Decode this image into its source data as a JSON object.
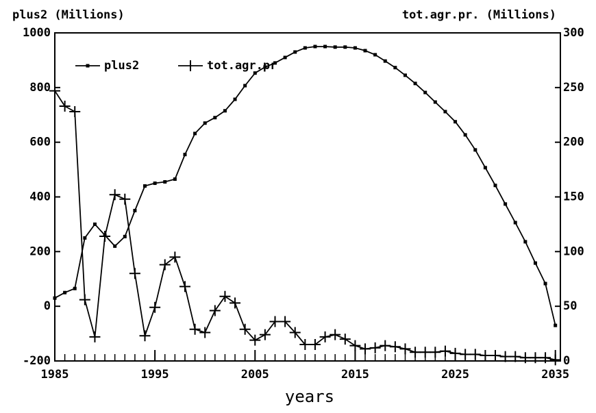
{
  "chart_data": {
    "type": "line",
    "y_label": "plus2 (Millions)",
    "y2_label": "tot.agr.pr. (Millions)",
    "x_label": "years",
    "x": [
      1985,
      1986,
      1987,
      1988,
      1989,
      1990,
      1991,
      1992,
      1993,
      1994,
      1995,
      1996,
      1997,
      1998,
      1999,
      2000,
      2001,
      2002,
      2003,
      2004,
      2005,
      2006,
      2007,
      2008,
      2009,
      2010,
      2011,
      2012,
      2013,
      2014,
      2015,
      2016,
      2017,
      2018,
      2019,
      2020,
      2021,
      2022,
      2023,
      2024,
      2025,
      2026,
      2027,
      2028,
      2029,
      2030,
      2031,
      2032,
      2033,
      2034,
      2035
    ],
    "series": [
      {
        "name": "plus2",
        "color": "#000000",
        "marker": "square",
        "values": [
          30,
          50,
          65,
          250,
          300,
          260,
          220,
          255,
          350,
          440,
          450,
          455,
          465,
          555,
          632,
          670,
          690,
          715,
          757,
          807,
          853,
          875,
          890,
          910,
          930,
          945,
          950,
          950,
          948,
          948,
          945,
          935,
          920,
          897,
          873,
          845,
          815,
          782,
          747,
          712,
          675,
          627,
          572,
          507,
          442,
          374,
          306,
          236,
          158,
          83,
          -70
        ]
      },
      {
        "name": "tot.agr.pr",
        "color": "#000000",
        "marker": "plus",
        "axis": "y2",
        "values": [
          247,
          233,
          228,
          56,
          22,
          114,
          152,
          148,
          80,
          23,
          49,
          88,
          95,
          68,
          29,
          26,
          46,
          59,
          53,
          29,
          19,
          24,
          36,
          36,
          26,
          15,
          15,
          22,
          24,
          20,
          14,
          11,
          12,
          14,
          13,
          11,
          8,
          8,
          8,
          9,
          7,
          6,
          6,
          5,
          5,
          4,
          4,
          3,
          3,
          3,
          1
        ]
      }
    ],
    "xlim": [
      1985,
      2035.5
    ],
    "xticks": [
      1985,
      1995,
      2005,
      2015,
      2025,
      2035
    ],
    "ylim": [
      -200,
      1000
    ],
    "yticks": [
      -200,
      0,
      200,
      400,
      600,
      800,
      1000
    ],
    "y2lim": [
      0,
      300
    ],
    "y2ticks": [
      0,
      50,
      100,
      150,
      200,
      250,
      300
    ],
    "legend": "top-left"
  }
}
